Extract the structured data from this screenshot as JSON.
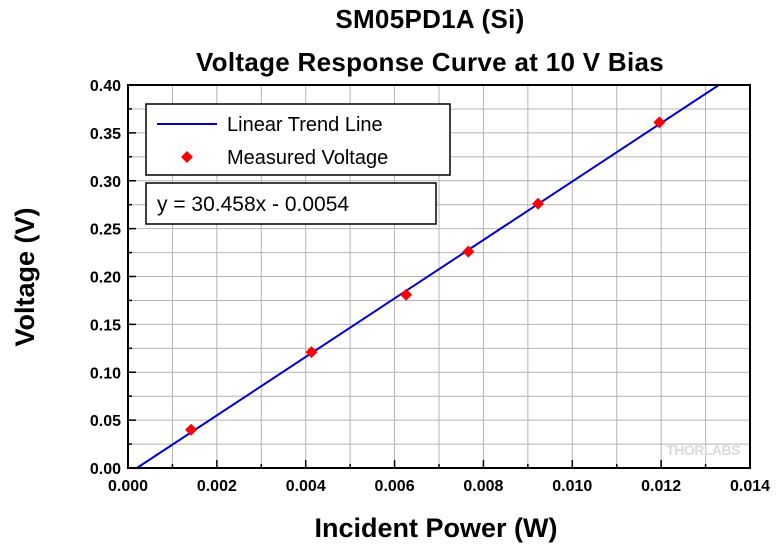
{
  "chart_data": {
    "type": "scatter",
    "title": "SM05PD1A (Si)",
    "subtitle": "Voltage Response Curve at 10 V Bias",
    "xlabel": "Incident Power (W)",
    "ylabel": "Voltage (V)",
    "xlim": [
      0.0,
      0.014
    ],
    "ylim": [
      0.0,
      0.4
    ],
    "x_ticks": [
      "0.000",
      "0.002",
      "0.004",
      "0.006",
      "0.008",
      "0.010",
      "0.012",
      "0.014"
    ],
    "y_ticks": [
      "0.00",
      "0.05",
      "0.10",
      "0.15",
      "0.20",
      "0.25",
      "0.30",
      "0.35",
      "0.40"
    ],
    "grid": true,
    "legend_position": "top-left",
    "series": [
      {
        "name": "Linear Trend Line",
        "kind": "line",
        "color": "#0000cc",
        "x": [
          0.0002,
          0.0133
        ],
        "y": [
          0.0,
          0.4
        ]
      },
      {
        "name": "Measured Voltage",
        "kind": "scatter",
        "color": "#ff0000",
        "marker": "diamond",
        "x": [
          0.00142,
          0.00413,
          0.00626,
          0.00766,
          0.00923,
          0.01196
        ],
        "y": [
          0.04,
          0.121,
          0.181,
          0.226,
          0.276,
          0.361
        ]
      }
    ],
    "annotation": "y = 30.458x - 0.0054",
    "watermark": "THORLABS"
  }
}
